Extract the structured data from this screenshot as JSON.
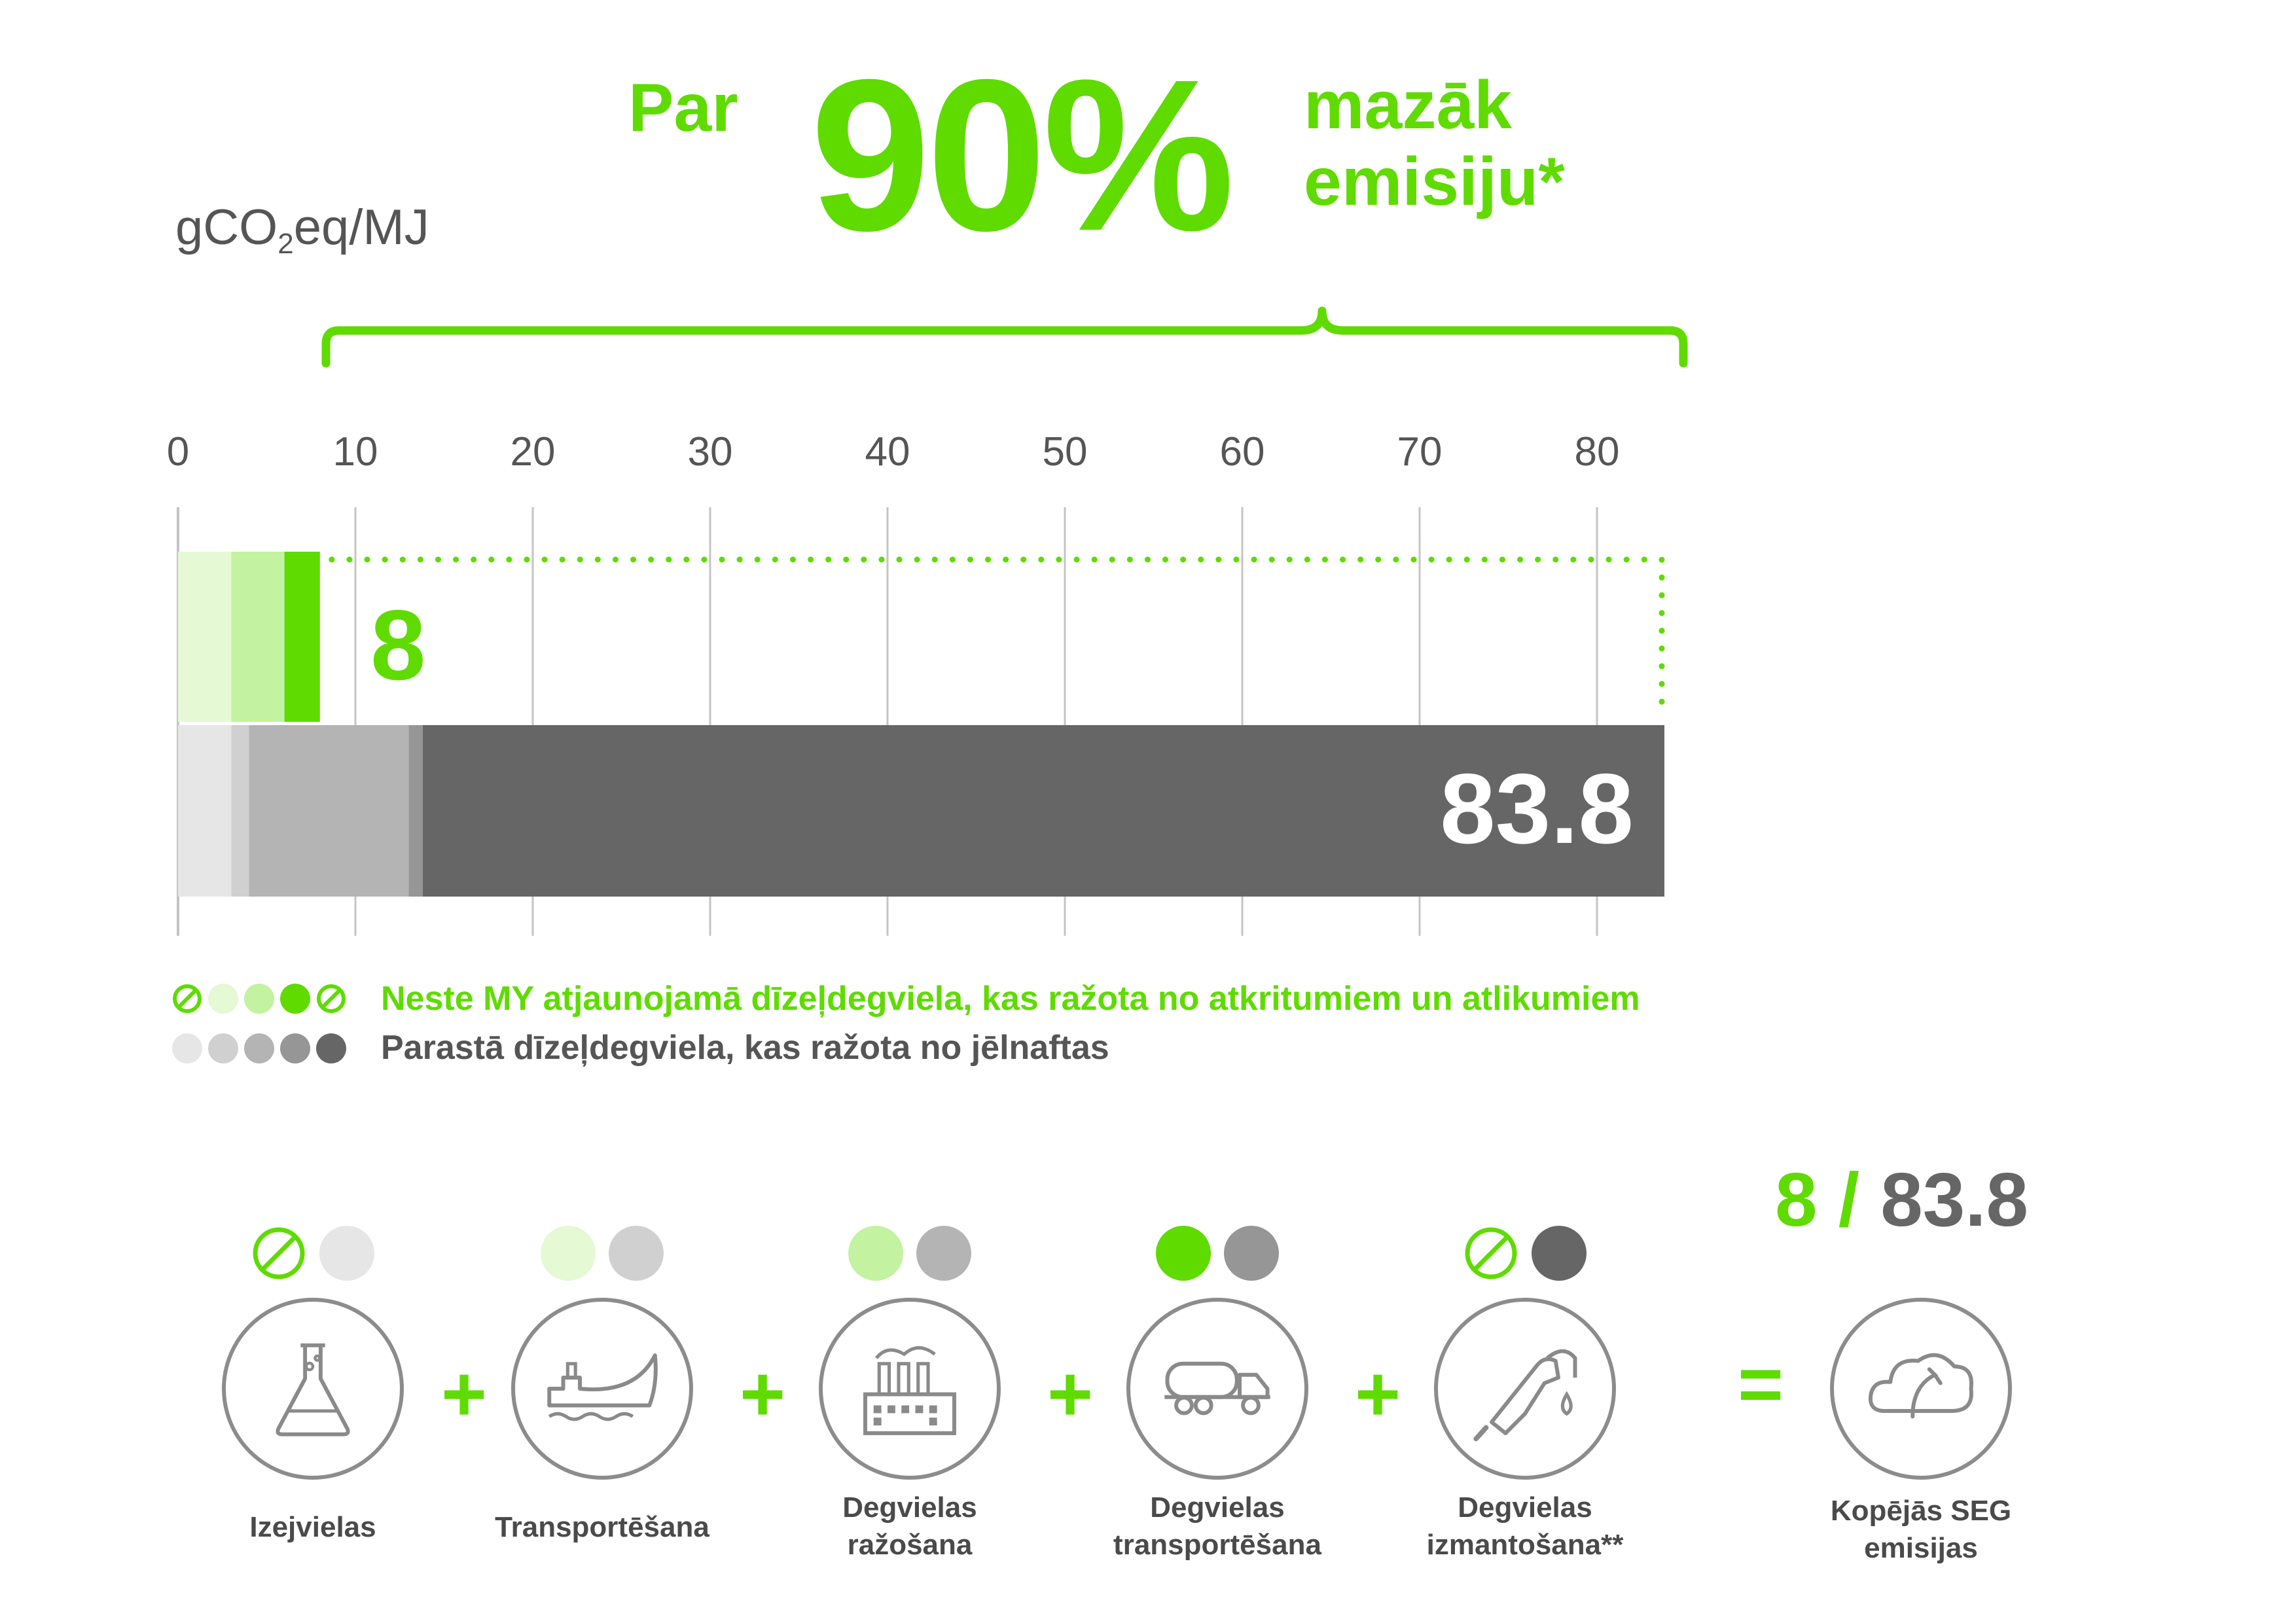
{
  "headline": {
    "prefix": "Par",
    "percent": "90%",
    "suffix_line1": "mazāk",
    "suffix_line2": "emisiju*"
  },
  "unit": {
    "main": "gCO",
    "sub": "2",
    "rest": "eq/MJ"
  },
  "colors": {
    "green": "#5fdb00",
    "green_light": "#c3f2a0",
    "green_pale": "#e4f9d4",
    "gray_pale": "#e6e6e6",
    "gray_light": "#d0d0d0",
    "gray_mid": "#b4b4b4",
    "gray": "#969696",
    "gray_dark": "#666666"
  },
  "chart_data": {
    "type": "bar",
    "orientation": "horizontal",
    "stacked": true,
    "xlim": [
      0,
      85
    ],
    "x_ticks": [
      0,
      10,
      20,
      30,
      40,
      50,
      60,
      70,
      80
    ],
    "grid": true,
    "stage_labels": [
      "Izejvielas",
      "Transportēšana",
      "Degvielas ražošana",
      "Degvielas transportēšana",
      "Degvielas izmantošana**"
    ],
    "series": [
      {
        "name": "Neste MY atjaunojamā dīzeļdegviela, kas ražota no atkritumiem un atlikumiem",
        "total": 8,
        "total_label": "8",
        "segments": [
          0,
          3,
          3,
          2,
          0
        ],
        "colors": [
          "#5fdb00",
          "#e4f9d4",
          "#c3f2a0",
          "#5fdb00",
          "#5fdb00"
        ]
      },
      {
        "name": "Parastā dīzeļdegviela, kas ražota no jēlnaftas",
        "total": 83.8,
        "total_label": "83.8",
        "segments": [
          3,
          1,
          9,
          0.8,
          70
        ],
        "colors": [
          "#e6e6e6",
          "#d0d0d0",
          "#b4b4b4",
          "#969696",
          "#666666"
        ]
      }
    ]
  },
  "legend": {
    "green_label": "Neste MY atjaunojamā dīzeļdegviela, kas ražota no atkritumiem un atlikumiem",
    "gray_label": "Parastā dīzeļdegviela, kas ražota no jēlnaftas"
  },
  "process": {
    "steps": [
      {
        "label": "Izejvielas",
        "icon": "flask-icon",
        "green_none": true,
        "green_color": "#5fdb00",
        "gray_color": "#e6e6e6"
      },
      {
        "label": "Transportēšana",
        "icon": "ship-icon",
        "green_none": false,
        "green_color": "#e4f9d4",
        "gray_color": "#d0d0d0"
      },
      {
        "label": "Degvielas ražošana",
        "icon": "factory-icon",
        "green_none": false,
        "green_color": "#c3f2a0",
        "gray_color": "#b4b4b4"
      },
      {
        "label": "Degvielas transportēšana",
        "icon": "tanker-truck-icon",
        "green_none": false,
        "green_color": "#5fdb00",
        "gray_color": "#969696"
      },
      {
        "label": "Degvielas izmantošana**",
        "icon": "fuel-nozzle-icon",
        "green_none": true,
        "green_color": "#5fdb00",
        "gray_color": "#666666"
      }
    ],
    "operator_plus": "+",
    "operator_equals": "=",
    "result": {
      "label": "Kopējās SEG emisijas",
      "icon": "cloud-icon",
      "green_value": "8",
      "separator": "/",
      "gray_value": "83.8"
    }
  }
}
